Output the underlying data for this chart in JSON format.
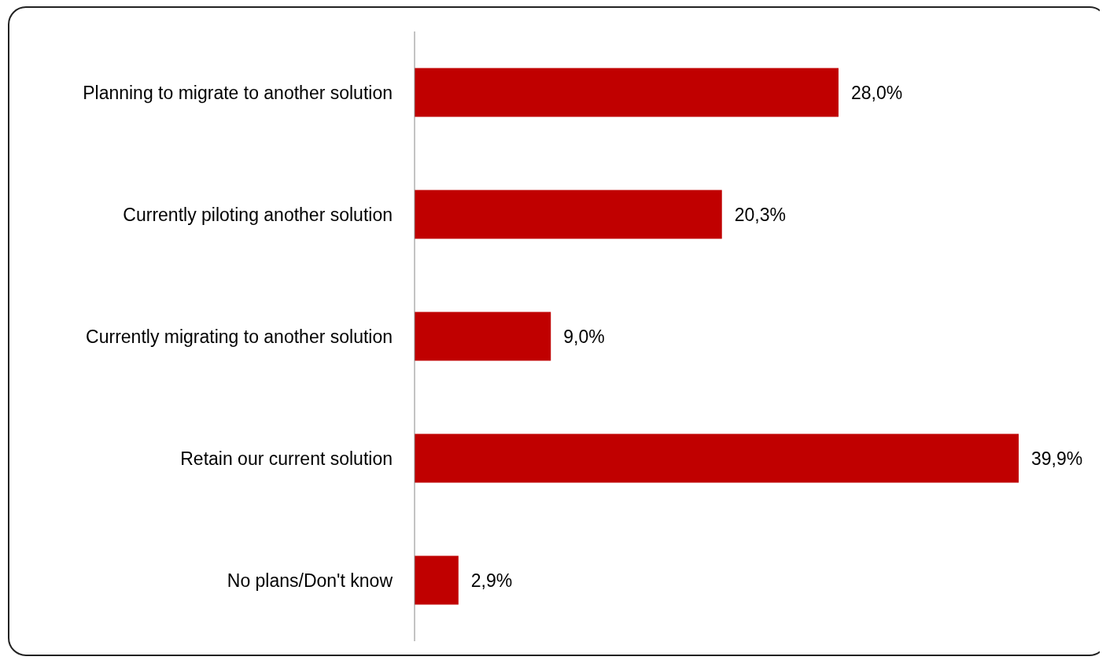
{
  "chart_data": {
    "type": "bar",
    "orientation": "horizontal",
    "categories": [
      "Planning to migrate to another solution",
      "Currently piloting another solution",
      "Currently migrating to another solution",
      "Retain our current solution",
      "No plans/Don't know"
    ],
    "values": [
      28.0,
      20.3,
      9.0,
      39.9,
      2.9
    ],
    "value_labels": [
      "28,0%",
      "20,3%",
      "9,0%",
      "39,9%",
      "2,9%"
    ],
    "color": "#c00000"
  }
}
